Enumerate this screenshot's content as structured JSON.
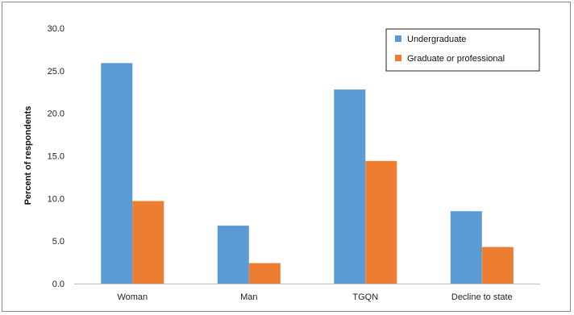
{
  "chart_data": {
    "type": "bar",
    "title": "",
    "xlabel": "",
    "ylabel": "Percent of respondents",
    "categories": [
      "Woman",
      "Man",
      "TGQN",
      "Decline to state"
    ],
    "series": [
      {
        "name": "Undergraduate",
        "color": "#5b9bd5",
        "values": [
          25.9,
          6.8,
          22.8,
          8.5
        ]
      },
      {
        "name": "Graduate or professional",
        "color": "#ed7d31",
        "values": [
          9.7,
          2.4,
          14.4,
          4.3
        ]
      }
    ],
    "ylim": [
      0,
      30
    ],
    "yticks": [
      "0.0",
      "5.0",
      "10.0",
      "15.0",
      "20.0",
      "25.0",
      "30.0"
    ],
    "grid": false,
    "legend_position": "top-right"
  }
}
